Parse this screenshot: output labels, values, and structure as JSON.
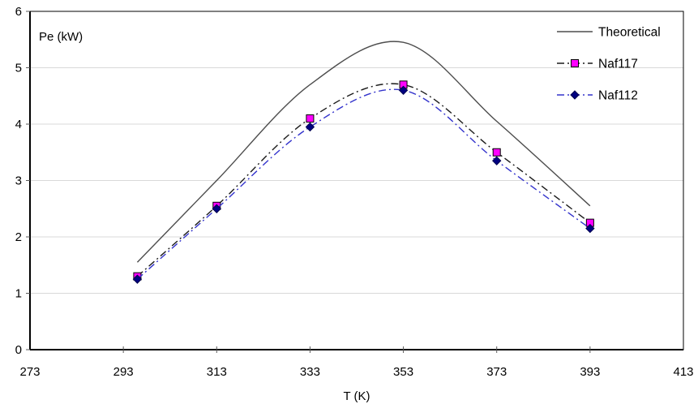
{
  "chart_data": {
    "type": "line",
    "title": "",
    "xlabel": "T (K)",
    "ylabel": "Pe (kW)",
    "xlim": [
      273,
      413
    ],
    "ylim": [
      0,
      6
    ],
    "x_ticks": [
      273,
      293,
      313,
      333,
      353,
      373,
      393,
      413
    ],
    "y_ticks": [
      0,
      1,
      2,
      3,
      4,
      5,
      6
    ],
    "grid": "horizontal",
    "grid_color": "#d9d9d9",
    "frame_color": "#000000",
    "legend_position": "top-right-inside",
    "series": [
      {
        "name": "Theoretical",
        "line_style": "solid",
        "color": "#4d4d4d",
        "marker": "none",
        "x": [
          296,
          313,
          333,
          353,
          373,
          393
        ],
        "values": [
          1.55,
          3.0,
          4.7,
          5.45,
          4.05,
          2.55
        ]
      },
      {
        "name": "Naf117",
        "line_style": "dash-dot",
        "color": "#1a1a1a",
        "marker": "square",
        "marker_color": "#ff00ff",
        "marker_edge": "#000000",
        "x": [
          296,
          313,
          333,
          353,
          373,
          393
        ],
        "values": [
          1.3,
          2.55,
          4.1,
          4.7,
          3.5,
          2.25
        ]
      },
      {
        "name": "Naf112",
        "line_style": "dash-dot",
        "color": "#3333cc",
        "marker": "diamond",
        "marker_color": "#000080",
        "marker_edge": "#00004d",
        "x": [
          296,
          313,
          333,
          353,
          373,
          393
        ],
        "values": [
          1.25,
          2.5,
          3.95,
          4.6,
          3.35,
          2.15
        ]
      }
    ]
  }
}
